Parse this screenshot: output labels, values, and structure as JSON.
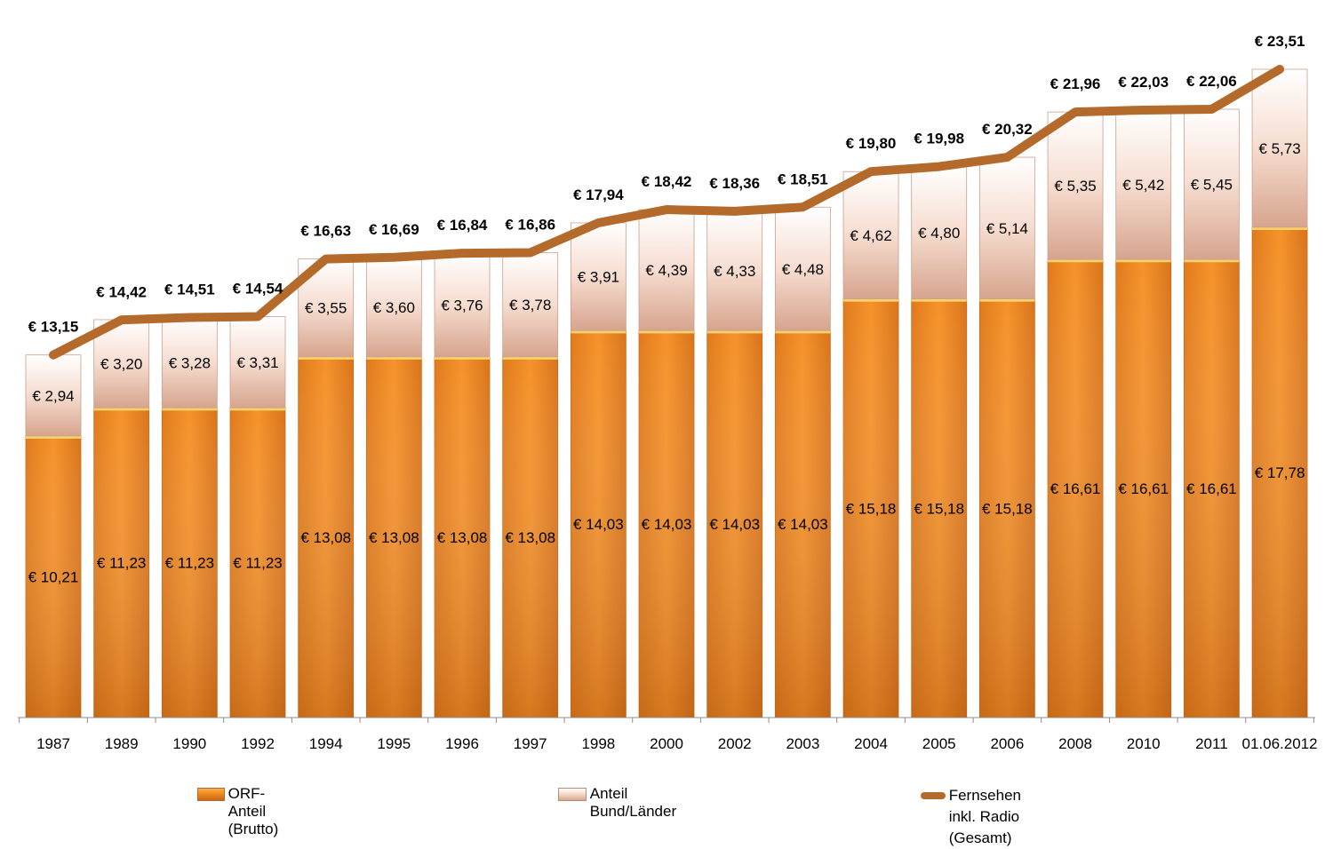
{
  "chart_data": {
    "type": "bar",
    "stacked": true,
    "categories": [
      "1987",
      "1989",
      "1990",
      "1992",
      "1994",
      "1995",
      "1996",
      "1997",
      "1998",
      "2000",
      "2002",
      "2003",
      "2004",
      "2005",
      "2006",
      "2008",
      "2010",
      "2011",
      "01.06.2012"
    ],
    "series": [
      {
        "name": "ORF-Anteil (Brutto)",
        "kind": "bar",
        "color": "#f08a1e",
        "values": [
          10.21,
          11.23,
          11.23,
          11.23,
          13.08,
          13.08,
          13.08,
          13.08,
          14.03,
          14.03,
          14.03,
          14.03,
          15.18,
          15.18,
          15.18,
          16.61,
          16.61,
          16.61,
          17.78
        ],
        "labels": [
          "€ 10,21",
          "€ 11,23",
          "€ 11,23",
          "€ 11,23",
          "€ 13,08",
          "€ 13,08",
          "€ 13,08",
          "€ 13,08",
          "€ 14,03",
          "€ 14,03",
          "€ 14,03",
          "€ 14,03",
          "€ 15,18",
          "€ 15,18",
          "€ 15,18",
          "€ 16,61",
          "€ 16,61",
          "€ 16,61",
          "€ 17,78"
        ]
      },
      {
        "name": "Anteil Bund/Länder",
        "kind": "bar",
        "color": "#e8b9a4",
        "values": [
          2.94,
          3.2,
          3.28,
          3.31,
          3.55,
          3.6,
          3.76,
          3.78,
          3.91,
          4.39,
          4.33,
          4.48,
          4.62,
          4.8,
          5.14,
          5.35,
          5.42,
          5.45,
          5.73
        ],
        "labels": [
          "€ 2,94",
          "€ 3,20",
          "€ 3,28",
          "€ 3,31",
          "€ 3,55",
          "€ 3,60",
          "€ 3,76",
          "€ 3,78",
          "€ 3,91",
          "€ 4,39",
          "€ 4,33",
          "€ 4,48",
          "€ 4,62",
          "€ 4,80",
          "€ 5,14",
          "€ 5,35",
          "€ 5,42",
          "€ 5,45",
          "€ 5,73"
        ]
      },
      {
        "name": "Fernsehen inkl. Radio (Gesamt)",
        "kind": "line",
        "color": "#b46a2b",
        "values": [
          13.15,
          14.42,
          14.51,
          14.54,
          16.63,
          16.69,
          16.84,
          16.86,
          17.94,
          18.42,
          18.36,
          18.51,
          19.8,
          19.98,
          20.32,
          21.96,
          22.03,
          22.06,
          23.51
        ],
        "labels": [
          "€ 13,15",
          "€ 14,42",
          "€ 14,51",
          "€ 14,54",
          "€ 16,63",
          "€ 16,69",
          "€ 16,84",
          "€ 16,86",
          "€ 17,94",
          "€ 18,42",
          "€ 18,36",
          "€ 18,51",
          "€ 19,80",
          "€ 19,98",
          "€ 20,32",
          "€ 21,96",
          "€ 22,03",
          "€ 22,06",
          "€ 23,51"
        ]
      }
    ],
    "ylim": [
      0,
      23.51
    ],
    "grid": false,
    "legend_position": "bottom"
  },
  "legend": {
    "orf": "ORF-Anteil (Brutto)",
    "bund": "Anteil Bund/Länder",
    "line_1": "Fernsehen inkl. Radio",
    "line_2": "(Gesamt)"
  }
}
